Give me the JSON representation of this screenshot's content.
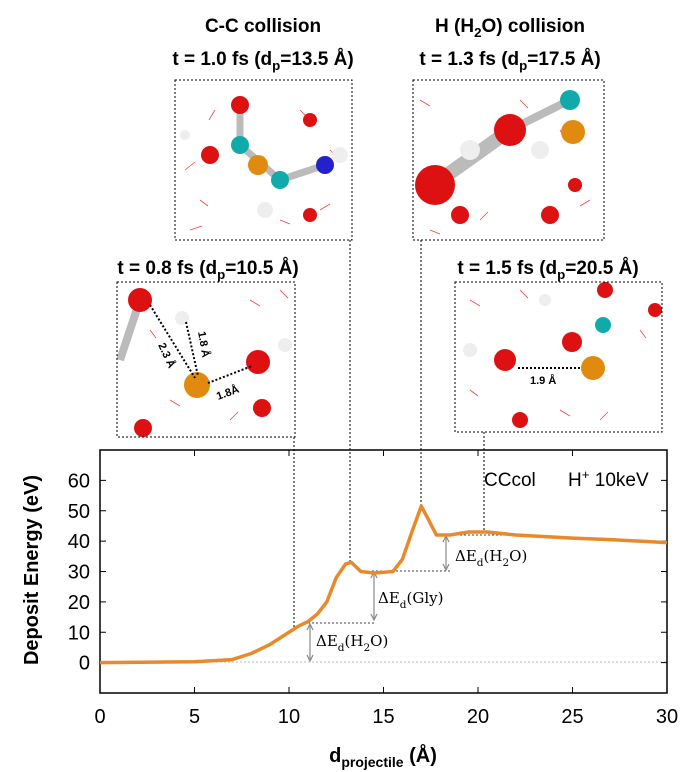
{
  "chart_data": {
    "type": "line",
    "x": [
      0,
      5,
      7,
      8,
      9,
      10,
      10.5,
      11,
      11.5,
      12,
      12.5,
      13,
      13.3,
      13.8,
      14.5,
      15.5,
      16,
      16.5,
      17,
      17.3,
      17.8,
      18.5,
      19.5,
      20.5,
      22,
      25,
      27,
      30
    ],
    "values": [
      0,
      0.3,
      1,
      3,
      6,
      10,
      12,
      13.5,
      16,
      20,
      28,
      32.5,
      33,
      30,
      29.5,
      30,
      34,
      43,
      51.5,
      48,
      42,
      42,
      43,
      43,
      42,
      41,
      40.5,
      39.5
    ],
    "color": "#e8892b",
    "xlim": [
      0,
      30
    ],
    "xticks": [
      0,
      5,
      10,
      15,
      20,
      25,
      30
    ],
    "ylim": [
      -10,
      70
    ],
    "yticks": [
      0,
      10,
      20,
      30,
      40,
      50,
      60
    ],
    "y_label": "Deposit Energy (eV)",
    "x_label": [
      "d",
      "projectile",
      " (Å)"
    ],
    "annotations": {
      "system": "CCcol",
      "beam": [
        "H",
        "+",
        " 10keV"
      ],
      "delta_water_1": [
        "ΔE",
        "d",
        "(H",
        "2",
        "O)"
      ],
      "delta_gly": [
        "ΔE",
        "d",
        "(Gly)"
      ],
      "delta_water_2": [
        "ΔE",
        "d",
        "(H",
        "2",
        "O)"
      ]
    },
    "insets": [
      {
        "title": "C-C collision",
        "time": [
          "t = 1.0 fs (d",
          "p",
          "=13.5 Å)"
        ]
      },
      {
        "title": [
          "H (H",
          "2",
          "O) collision"
        ],
        "time": [
          "t = 1.3 fs (d",
          "p",
          "=17.5 Å)"
        ]
      },
      {
        "time": [
          "t = 0.8 fs (d",
          "p",
          "=10.5 Å)"
        ],
        "distances": [
          "2.3 Å",
          "1.8 Å",
          "1.8Å"
        ]
      },
      {
        "time": [
          "t = 1.5 fs (d",
          "p",
          "=20.5 Å)"
        ],
        "distances": [
          "1.9 Å"
        ]
      }
    ]
  }
}
